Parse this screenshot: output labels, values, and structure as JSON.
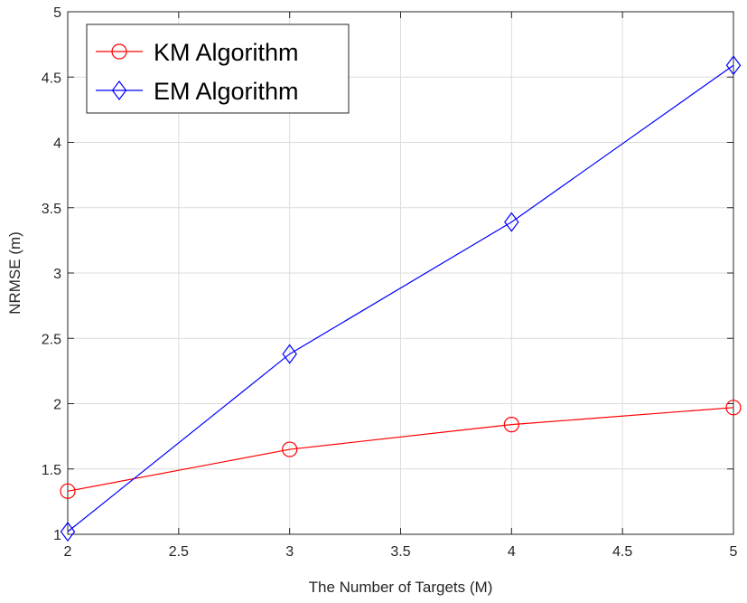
{
  "chart_data": {
    "type": "line",
    "title": "",
    "xlabel": "The Number of Targets (M)",
    "ylabel": "NRMSE (m)",
    "xlim": [
      2,
      5
    ],
    "ylim": [
      1,
      5
    ],
    "xticks": [
      2,
      2.5,
      3,
      3.5,
      4,
      4.5,
      5
    ],
    "xtick_labels": [
      "2",
      "2.5",
      "3",
      "3.5",
      "4",
      "4.5",
      "5"
    ],
    "yticks": [
      1,
      1.5,
      2,
      2.5,
      3,
      3.5,
      4,
      4.5,
      5
    ],
    "ytick_labels": [
      "1",
      "1.5",
      "2",
      "2.5",
      "3",
      "3.5",
      "4",
      "4.5",
      "5"
    ],
    "grid": true,
    "legend_position": "top-left",
    "x": [
      2,
      3,
      4,
      5
    ],
    "series": [
      {
        "name": "KM Algorithm",
        "values": [
          1.33,
          1.65,
          1.84,
          1.97
        ],
        "color": "#ff0000",
        "marker": "circle"
      },
      {
        "name": "EM Algorithm",
        "values": [
          1.02,
          2.38,
          3.39,
          4.59
        ],
        "color": "#0000ff",
        "marker": "diamond"
      }
    ]
  }
}
